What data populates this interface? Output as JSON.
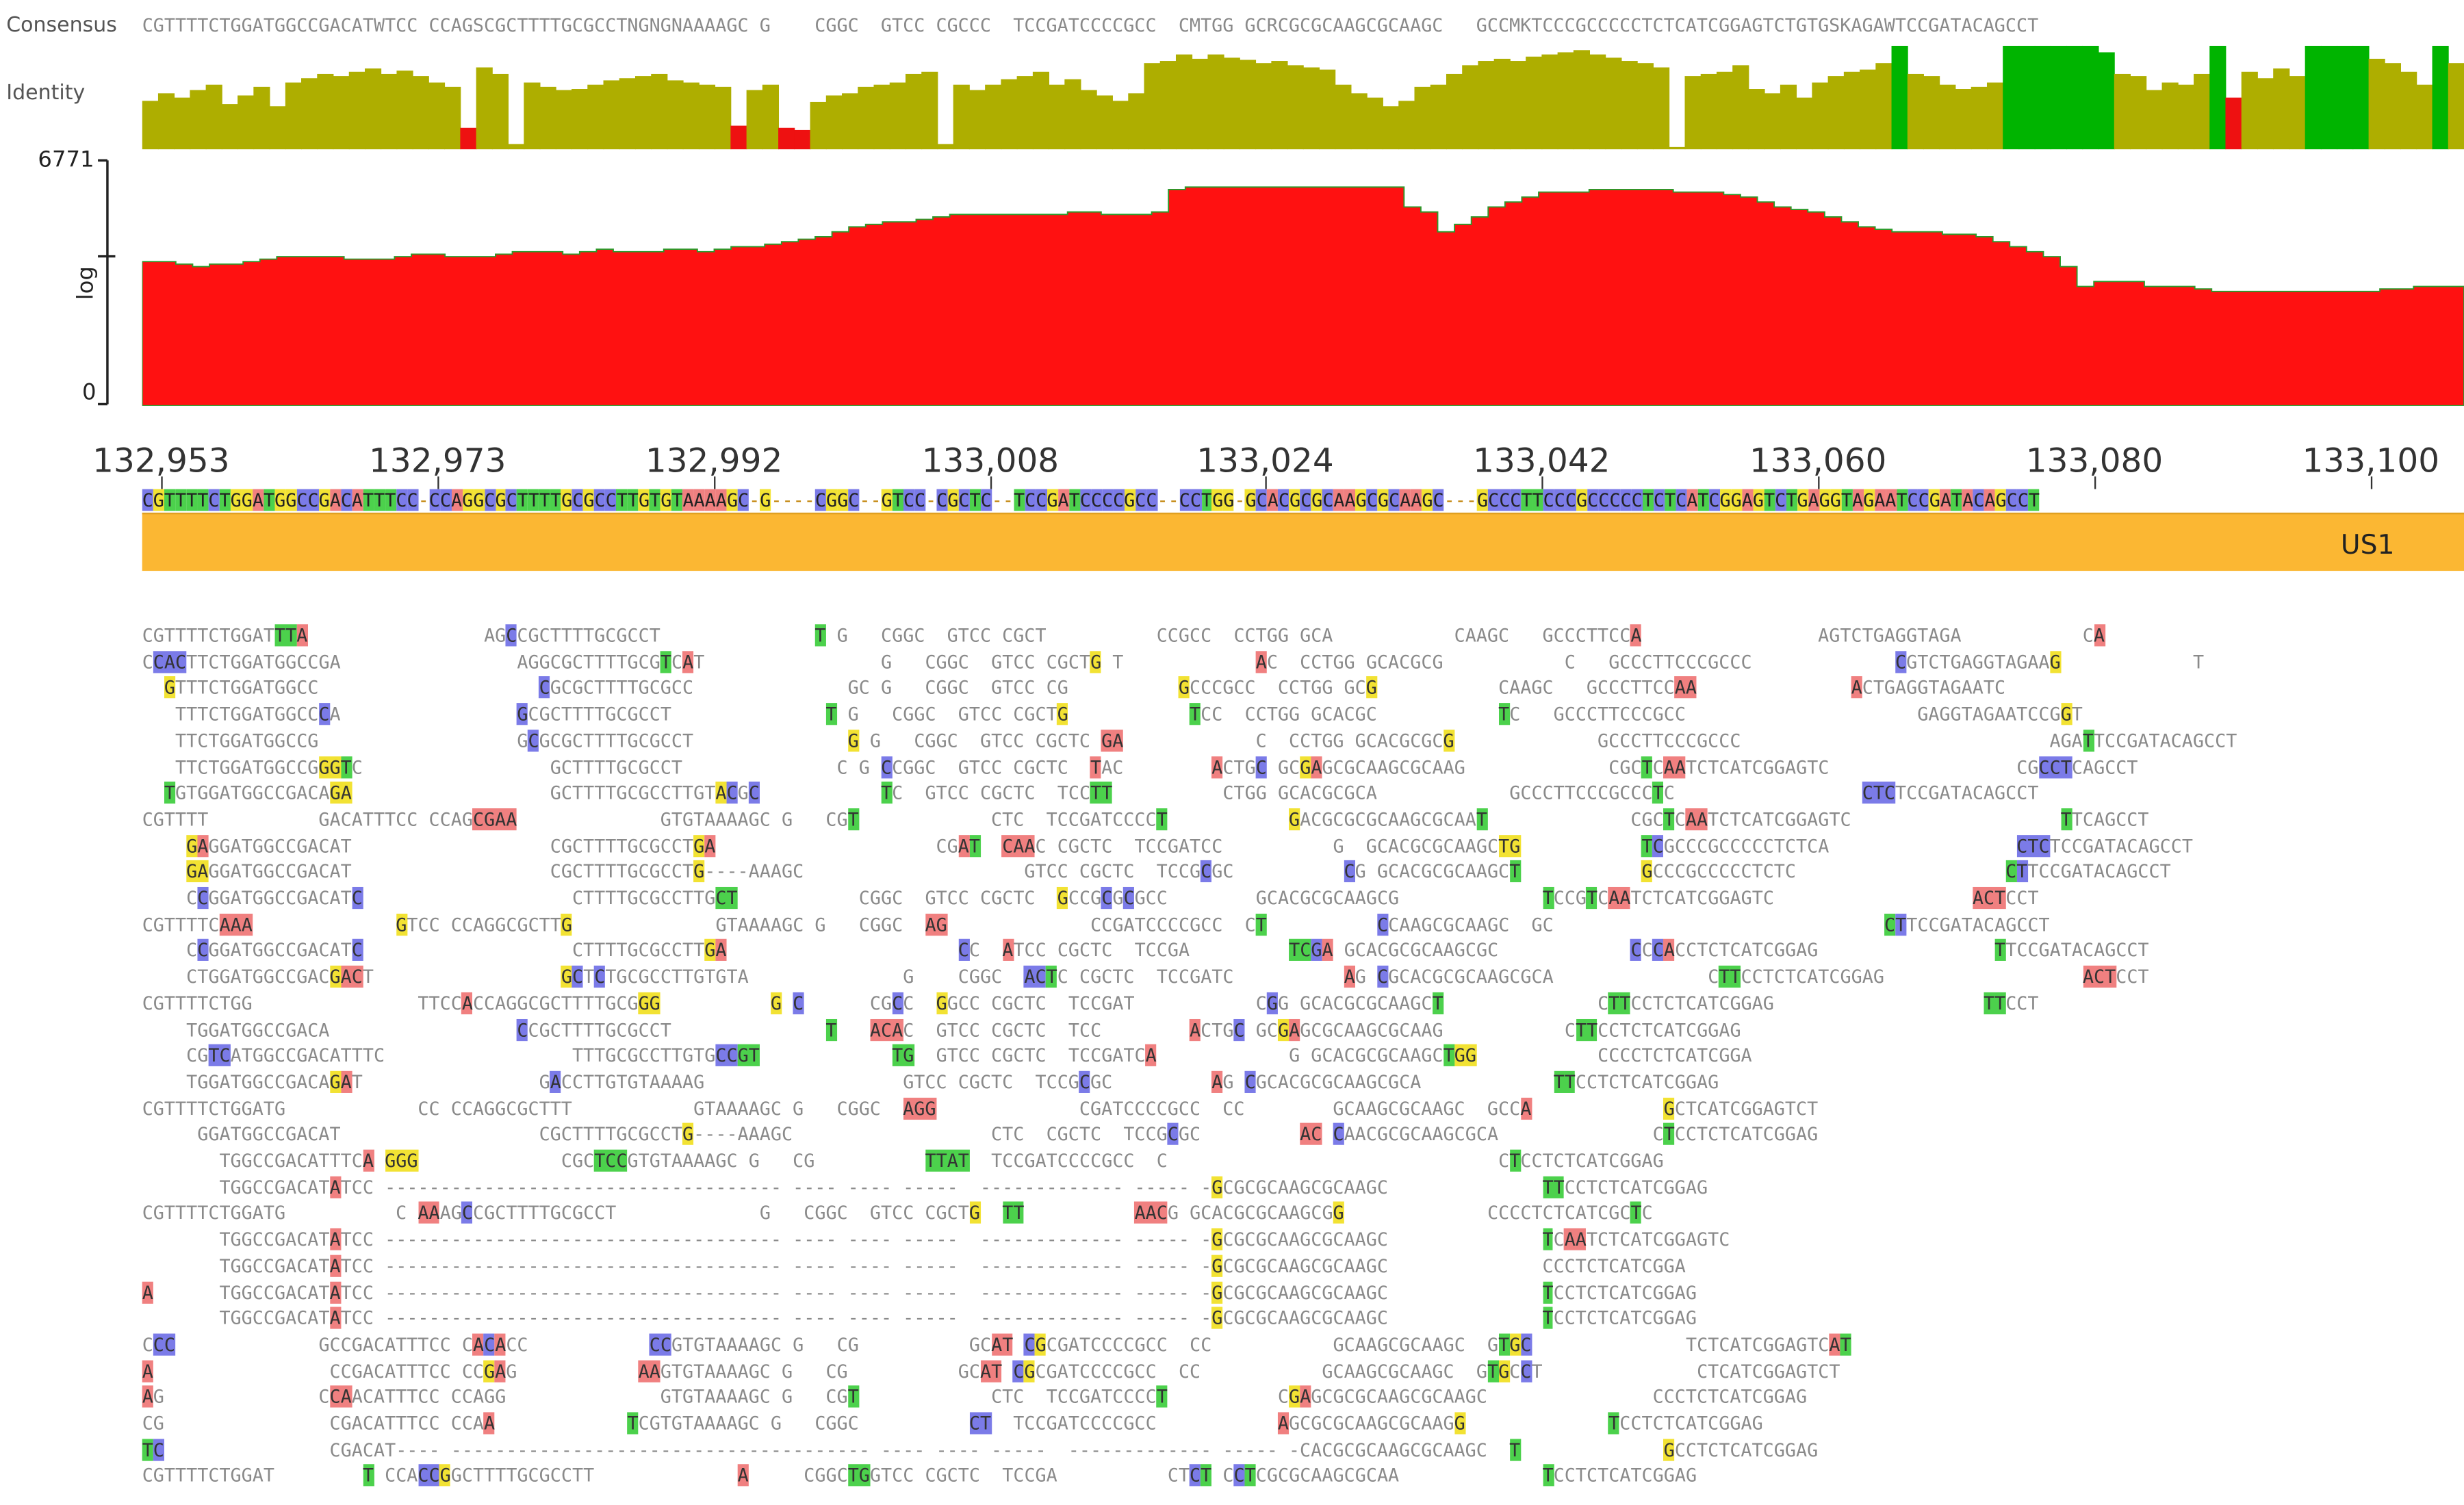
{
  "track_labels": {
    "consensus": "Consensus",
    "identity": "Identity"
  },
  "consensus_sequence": "CGTTTTCTGGATGGCCGACATWTCC CCAGSCGCTTTTGCGCCTNGNGNAAAAGC G    CGGC  GTCC CGCCC  TCCGATCCCCGCC  CMTGG GCRCGCGCAAGCGCAAGC   GCCMKTCCCGCCCCCTCTCATCGGAGTCTGTGSKAGAWTCCGATACAGCCT",
  "coverage": {
    "max_label": "6771",
    "min_label": "0",
    "scale_label": "log"
  },
  "ruler": {
    "ticks": [
      "132,953",
      "132,973",
      "132,992",
      "133,008",
      "133,024",
      "133,042",
      "133,060",
      "133,080",
      "133,100"
    ]
  },
  "reference_sequence": "CGTTTTCTGGATGGCCGACATTTCC CCAGGCGCTTTTGCGCCTTGTGTAAAAGC G    CGGC  GTCC CGCTC  TCCGATCCCCGCC  CCTGG GCACGCGCAAGCGCAAGC   GCCCTTCCCGCCCCCTCTCATCGGAGTCTGAGGTAGAATCCGATACAGCCT",
  "annotation": {
    "label": "US1"
  },
  "colors": {
    "A": "#f08080",
    "C": "#7b7be8",
    "G": "#f2e233",
    "T": "#4cd14c",
    "identity": "#aeae00",
    "identity_full": "#00b400",
    "identity_low": "#ee1111",
    "coverage": "#ff1111",
    "annotation": "#fbb733"
  },
  "identity": [
    45,
    52,
    48,
    55,
    60,
    42,
    50,
    58,
    40,
    62,
    66,
    70,
    68,
    72,
    75,
    70,
    73,
    68,
    62,
    58,
    20,
    76,
    70,
    5,
    62,
    58,
    55,
    56,
    60,
    64,
    66,
    68,
    70,
    64,
    62,
    60,
    58,
    22,
    55,
    60,
    20,
    18,
    44,
    50,
    52,
    58,
    60,
    62,
    70,
    72,
    5,
    60,
    55,
    60,
    65,
    68,
    72,
    60,
    65,
    55,
    50,
    45,
    52,
    80,
    82,
    88,
    84,
    88,
    85,
    83,
    80,
    82,
    78,
    76,
    74,
    60,
    52,
    48,
    40,
    45,
    58,
    60,
    70,
    78,
    82,
    84,
    82,
    86,
    88,
    90,
    92,
    88,
    85,
    82,
    80,
    76,
    2,
    68,
    70,
    72,
    78,
    56,
    52,
    60,
    48,
    62,
    68,
    72,
    74,
    80,
    96,
    70,
    68,
    60,
    56,
    58,
    62,
    96,
    96,
    96,
    96,
    96,
    96,
    90,
    70,
    68,
    55,
    62,
    60,
    70,
    96,
    48,
    72,
    66,
    75,
    68,
    96,
    96,
    96,
    96,
    84,
    80,
    72,
    60,
    96,
    80
  ],
  "identity_tier": [
    0,
    0,
    0,
    0,
    0,
    0,
    0,
    0,
    0,
    0,
    0,
    0,
    0,
    0,
    0,
    0,
    0,
    0,
    0,
    0,
    2,
    0,
    0,
    0,
    0,
    0,
    0,
    0,
    0,
    0,
    0,
    0,
    0,
    0,
    0,
    0,
    0,
    2,
    0,
    0,
    2,
    2,
    0,
    0,
    0,
    0,
    0,
    0,
    0,
    0,
    0,
    0,
    0,
    0,
    0,
    0,
    0,
    0,
    0,
    0,
    0,
    0,
    0,
    0,
    0,
    0,
    0,
    0,
    0,
    0,
    0,
    0,
    0,
    0,
    0,
    0,
    0,
    0,
    0,
    0,
    0,
    0,
    0,
    0,
    0,
    0,
    0,
    0,
    0,
    0,
    0,
    0,
    0,
    0,
    0,
    0,
    0,
    0,
    0,
    0,
    0,
    0,
    0,
    0,
    0,
    0,
    0,
    0,
    0,
    0,
    1,
    0,
    0,
    0,
    0,
    0,
    0,
    1,
    1,
    1,
    1,
    1,
    1,
    1,
    0,
    0,
    0,
    0,
    0,
    0,
    1,
    2,
    0,
    0,
    0,
    0,
    1,
    1,
    1,
    1,
    0,
    0,
    0,
    0,
    1,
    0
  ],
  "coverage_profile": [
    58,
    58,
    57,
    56,
    57,
    57,
    58,
    59,
    60,
    60,
    60,
    60,
    59,
    59,
    59,
    60,
    61,
    61,
    60,
    60,
    60,
    61,
    62,
    62,
    62,
    61,
    62,
    63,
    62,
    62,
    62,
    63,
    63,
    62,
    63,
    64,
    64,
    65,
    66,
    67,
    68,
    70,
    72,
    73,
    74,
    74,
    75,
    76,
    77,
    77,
    77,
    77,
    77,
    77,
    77,
    78,
    78,
    77,
    77,
    77,
    78,
    87,
    88,
    88,
    88,
    88,
    88,
    88,
    88,
    88,
    88,
    88,
    88,
    88,
    88,
    80,
    78,
    70,
    73,
    76,
    80,
    82,
    84,
    86,
    86,
    86,
    87,
    87,
    87,
    87,
    87,
    86,
    86,
    86,
    85,
    84,
    82,
    80,
    79,
    78,
    76,
    74,
    72,
    71,
    70,
    70,
    70,
    69,
    69,
    68,
    66,
    64,
    62,
    60,
    56,
    48,
    50,
    50,
    50,
    48,
    48,
    48,
    47,
    46,
    46,
    46,
    46,
    46,
    46,
    46,
    46,
    46,
    46,
    47,
    47,
    48,
    48,
    48
  ],
  "reads": [
    "CGTTTTCTGGAT{b:TT}{i:A}                AG{u:C}CGCTTTTGCGCCT              {b:T} G   CGGC  GTCC CGCT          CCGCC  CCTGG GCA           CAAGC   GCCCTTCC{i:A}                AGTCTGAGGTAGA           C{i:A}",
    "C{u:CAC}TTCTGGATGGCCGA                AGGCGCTTTTGCG{b:T}C{i:A}T                G   CGGC  GTCC CGCT{s:G} T            {i:A}C  CCTGG GCACGCG           C   GCCCTTCCCGCCC             {u:C}GTCTGAGGTAGAA{s:G}            T",
    "  {s:G}TTTCTGGATGGCC                    {u:C}GCGCTTTTGCGCC              GC G   CGGC  GTCC CG          {s:G}CCCGCC  CCTGG GC{s:G}           CAAGC   GCCCTTCC{i:AA}              {i:A}CTGAGGTAGAATC",
    "   TTTCTGGATGGCC{u:C}A                {u:G}CGCTTTTGCGCCT              {b:T} G   CGGC  GTCC CGCT{s:G}           {b:T}CC  CCTGG GCACGC           {b:T}C   GCCCTTCCCGCC                     GAGGTAGAATCCG{s:G}T",
    "   TTCTGGATGGCCG                  G{u:C}GCGCTTTTGCGCCT              {s:G} G   CGGC  GTCC CGCTC {i:GA}            C  CCTGG GCACGCGC{s:G}             GCCCTTCCCGCCC                            AGA{b:T}TCCGATACAGCCT",
    "   TTCTGGATGGCCG{s:GG}{b:T}C                 GCTTTTGCGCCT              C G {u:C}CGGC  GTCC CGCTC  {i:T}AC        {i:A}CTG{u:C} GC{s:G}{i:A}GCGCAAGCGCAAG             CGC{b:T}C{i:AA}TCTCATCGGAGTC                 CG{u:CCT}CAGCCT",
    "  {b:T}GTGGATGGCCGACA{s:GA}                  GCTTTTGCGCCTTGT{s:A}{u:C}G{u:C}           {b:T}C  GTCC CGCTC  TCC{b:TT}          CTGG GCACGCGCA            GCCCTTCCCGCCC{b:T}C                 {u:CTC}TCCGATACAGCCT",
    "CGTTTT          GACATTTCC CCAG{i:CGAA}             GTGTAAAAGC G   CG{b:T}            CTC  TCCGATCCCC{b:T}           {s:G}ACGCGCGCAAGCGCAA{b:T}             CGC{b:T}C{i:AA}TCTCATCGGAGTC                   {b:T}TCAGCCT",
    "    {s:G}{i:A}GGATGGCCGACAT                  CGCTTTTGCGCCT{s:G}{i:A}                    CG{i:A}{b:T}  {i:CAA}C CGCTC  TCCGATCC          G  GCACGCGCAAGC{s:TG}           {b:T}{u:C}GCCCGCCCCCTCTCA                 {u:CTC}TCCGATACAGCCT",
    "    {s:GA}GGATGGCCGACAT                  CGCTTTTGCGCCT{s:G}----AAAGC                    GTCC CGCTC  TCCG{u:C}GC          {u:C}G GCACGCGCAAGC{b:T}           {s:G}CCCGCCCCCTCTC                   {b:C}{u:T}TCCGATACAGCCT",
    "    C{u:C}GGATGGCCGACAT{u:C}                   CTTTTGCGCCTTG{b:CT}           CGGC  GTCC CGCTC  {s:G}CCG{u:C}G{u:C}GCC        GCACGCGCAAGCG             {b:T}CCG{b:T}C{i:AA}TCTCATCGGAGTC                  {i:ACT}CCT",
    "CGTTTTC{i:AAA}             {s:G}TCC CCAGGCGCTT{s:G}             GTAAAAGC G   CGGC  {i:AG}             CCGATCCCCGCC  C{b:T}          {u:C}CAAGCGCAAGC  GC                              {b:C}{u:T}TCCGATACAGCCT",
    "    C{u:C}GGATGGCCGACAT{u:C}                   CTTTTGCGCCTT{s:G}{i:A}                     {u:C}C  {i:A}TCC CGCTC  TCCGA         {b:TC}{u:G}{i:A} GCACGCGCAAGCGC            {u:C}C{u:C}{i:A}CCTCTCATCGGAG                {b:T}TCCGATACAGCCT",
    "    CTGGATGGCCGAC{s:G}{i:AC}T                 {s:G}{u:C}T{u:C}TGCGCCTTGTGTA              G    CGGC  {u:AC}{b:T}C CGCTC  TCCGATC          {i:A}G {u:C}GCACGCGCAAGCGCA              C{b:TT}CCTCTCATCGGAG                  {i:ACT}CCT",
    "CGTTTTCTGG               TTCC{i:A}CCAGGCGCTTTTGCG{s:GG}          {s:G} {u:C}      CG{u:C}C  {s:G}GCC CGCTC  TCCGAT           C{u:G}G GCACGCGCAAGC{b:T}              C{b:TT}CCTCTCATCGGAG                   {b:TT}CCT",
    "    TGGATGGCCGACA                 {u:C}CGCTTTTGCGCCT              {b:T}   {i:ACA}C  GTCC CGCTC  TCC        {i:A}CTG{u:C} GC{s:G}{i:A}GCGCAAGCGCAAG           C{b:TT}CCTCTCATCGGAG",
    "    CG{u:TC}ATGGCCGACATTTC                 TTTGCGCCTTGTG{u:CC}{b:GT}            {b:TG}  GTCC CGCTC  TCCGATC{i:A}            G GCACGCGCAAGC{b:T}{s:GG}           CCCCTCTCATCGGA",
    "    TGGATGGCCGACA{s:G}{i:A}T                G{u:A}CCTTGTGTAAAAG                  GTCC CGCTC  TCCG{u:C}GC         {i:A}G {u:C}GCACGCGCAAGCGCA            {b:TT}CCTCTCATCGGAG",
    "CGTTTTCTGGATG            CC CCAGGCGCTTT           GTAAAAGC G   CGGC  {i:AGG}             CGATCCCCGCC  CC        GCAAGCGCAAGC  GCC{i:A}            {s:G}CTCATCGGAGTCT",
    "     GGATGGCCGACAT                  CGCTTTTGCGCCT{s:G}----AAAGC                  CTC  CGCTC  TCCG{u:C}GC         {i:AC} {u:C}AACGCGCAAGCGCA              C{b:T}CCTCTCATCGGAG",
    "       TGGCCGACATTTC{i:A} {s:GGG}             CGC{b:TCC}GTGTAAAAGC G   CG          {b:TTAT}  TCCGATCCCCGCC  C                              C{b:T}CCTCTCATCGGAG",
    "       TGGCCGACAT{i:A}TCC ------------------------------------ ---- ---- -----  ------------- ----- -{s:G}CGCGCAAGCGCAAGC              {b:TT}CCTCTCATCGGAG",
    "CGTTTTCTGGATG          C {i:AA}AG{u:C}CGCTTTTGCGCCT             G   CGGC  GTCC CGCT{s:G}  {b:TT}          {i:AAC}G GCACGCGCAAGCG{s:G}             CCCCTCTCATCGC{b:T}C",
    "       TGGCCGACAT{i:A}TCC ------------------------------------ ---- ---- -----  ------------- ----- -{s:G}CGCGCAAGCGCAAGC              {b:T}C{i:AA}TCTCATCGGAGTC",
    "       TGGCCGACAT{i:A}TCC ------------------------------------ ---- ---- -----  ------------- ----- -{s:G}CGCGCAAGCGCAAGC              CCCTCTCATCGGA",
    "{i:A}      TGGCCGACAT{i:A}TCC ------------------------------------ ---- ---- -----  ------------- ----- -{s:G}CGCGCAAGCGCAAGC              {b:T}CCTCTCATCGGAG",
    "       TGGCCGACAT{i:A}TCC ------------------------------------ ---- ---- -----  ------------- ----- -{s:G}CGCGCAAGCGCAAGC              {b:T}CCTCTCATCGGAG",
    "C{u:CC}             GCCGACATTTCC C{i:A}{u:C}{i:A}CC           {u:CC}GTGTAAAAGC G   CG          GC{i:AT} {u:C}{s:G}CGATCCCCGCC  CC           GCAAGCGCAAGC  G{b:T}{s:G}{u:C}              TCTCATCGGAGTC{i:A}{b:T}",
    "{i:A}                CCGACATTTCC CC{s:G}{i:A}G           {i:AA}GTGTAAAAGC G   CG          GC{i:AT} {u:C}{s:G}CGATCCCCGCC  CC           GCAAGCGCAAGC  G{b:T}{s:G}C{u:C}T              CTCATCGGAGTCT",
    "{i:A}G              C{i:CA}ACATTTCC CCAGG              GTGTAAAAGC G   CG{b:T}            CTC  TCCGATCCCC{b:T}          C{s:G}{i:A}GCGCGCAAGCGCAAGC               CCCTCTCATCGGAG",
    "CG               CGACATTTCC CCA{i:A}            {b:T}CGTGTAAAAGC G   CGGC          {u:CT}  TCCGATCCCCGCC           {i:A}GCGCGCAAGCGCAAG{s:G}             {b:T}CCTCTCATCGGAG",
    "{b:T}{u:C}               CGACAT---- -------------------------------------- ---- ---- -----  ------------- ----- -CACGCGCAAGCGCAAGC  {b:T}             {s:G}CCTCTCATCGGAG",
    "CGTTTTCTGGAT        {b:T} CCA{u:CC}{s:G}GCTTTTGCGCCTT             {i:A}     CGGC{b:TG}GTCC CGCTC  TCCGA          CT{u:C}{b:T} C{u:C}{b:T}CGCGCAAGCGCAA             {b:T}CCTCTCATCGGAG"
  ]
}
